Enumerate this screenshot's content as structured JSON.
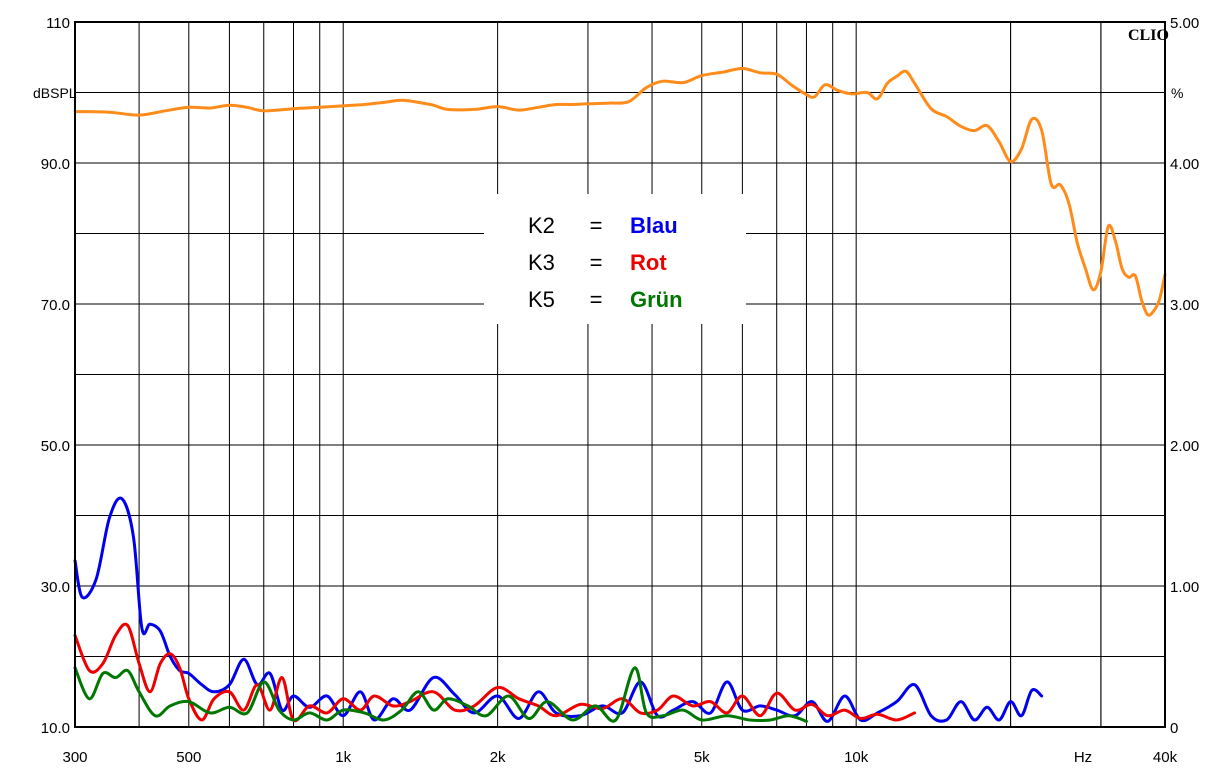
{
  "chart_data": {
    "type": "line",
    "brand": "CLIO",
    "xscale": "log",
    "xlim": [
      300,
      40000
    ],
    "xticks": [
      {
        "value": 300,
        "label": "300"
      },
      {
        "value": 500,
        "label": "500"
      },
      {
        "value": 1000,
        "label": "1k"
      },
      {
        "value": 2000,
        "label": "2k"
      },
      {
        "value": 5000,
        "label": "5k"
      },
      {
        "value": 10000,
        "label": "10k"
      },
      {
        "value": 40000,
        "label": "40k"
      }
    ],
    "xunit": "Hz",
    "grid": true,
    "y_left": {
      "unit": "dBSPL",
      "lim": [
        10,
        110
      ],
      "ticks": [
        {
          "value": 110,
          "label": "110"
        },
        {
          "value": 90,
          "label": "90.0"
        },
        {
          "value": 70,
          "label": "70.0"
        },
        {
          "value": 50,
          "label": "50.0"
        },
        {
          "value": 30,
          "label": "30.0"
        },
        {
          "value": 10,
          "label": "10.0"
        }
      ]
    },
    "y_right": {
      "unit": "%",
      "lim": [
        0,
        5
      ],
      "ticks": [
        {
          "value": 5,
          "label": "5.00"
        },
        {
          "value": 4,
          "label": "4.00"
        },
        {
          "value": 3,
          "label": "3.00"
        },
        {
          "value": 2,
          "label": "2.00"
        },
        {
          "value": 1,
          "label": "1.00"
        },
        {
          "value": 0,
          "label": "0"
        }
      ]
    },
    "legend": {
      "placement": "top-center",
      "entries": [
        {
          "key": "K2",
          "eq": "=",
          "color_name": "Blau",
          "color": "#0000ee"
        },
        {
          "key": "K3",
          "eq": "=",
          "color_name": "Rot",
          "color": "#ee0000"
        },
        {
          "key": "K5",
          "eq": "=",
          "color_name": "Grün",
          "color": "#007700"
        }
      ]
    },
    "series": [
      {
        "color": "#ff8c1a",
        "axis": "left",
        "x": [
          300,
          350,
          400,
          450,
          500,
          550,
          600,
          650,
          700,
          800,
          900,
          1000,
          1100,
          1200,
          1300,
          1400,
          1500,
          1600,
          1800,
          2000,
          2200,
          2400,
          2600,
          2800,
          3000,
          3300,
          3600,
          3900,
          4200,
          4600,
          5000,
          5500,
          6000,
          6500,
          7000,
          7500,
          8000,
          8300,
          8700,
          9200,
          9800,
          10500,
          11000,
          11500,
          12000,
          12500,
          13000,
          14000,
          15000,
          16000,
          17000,
          18000,
          19000,
          20000,
          21000,
          22000,
          23000,
          24000,
          25000,
          26000,
          27000,
          28000,
          29000,
          30000,
          31000,
          32000,
          33000,
          34000,
          35000,
          36000,
          37000,
          38000,
          39000,
          40000
        ],
        "values": [
          97.3,
          97.2,
          96.8,
          97.4,
          97.9,
          97.8,
          98.2,
          97.9,
          97.4,
          97.7,
          97.9,
          98.1,
          98.3,
          98.6,
          98.9,
          98.6,
          98.2,
          97.6,
          97.6,
          98.0,
          97.5,
          97.9,
          98.3,
          98.3,
          98.4,
          98.5,
          98.7,
          100.7,
          101.6,
          101.4,
          102.4,
          102.9,
          103.4,
          102.8,
          102.6,
          101.0,
          99.7,
          99.4,
          101.1,
          100.3,
          99.8,
          100.0,
          99.1,
          101.3,
          102.3,
          103.0,
          101.3,
          97.7,
          96.6,
          95.2,
          94.6,
          95.3,
          93.0,
          90.2,
          92.0,
          96.2,
          94.6,
          87.0,
          86.9,
          84.2,
          78.6,
          75.0,
          72.0,
          74.6,
          81.0,
          79.0,
          75.0,
          73.8,
          74.0,
          70.6,
          68.5,
          69.0,
          70.6,
          74.2
        ]
      },
      {
        "name": "K2",
        "color": "#0000ee",
        "axis": "right",
        "x": [
          300,
          310,
          330,
          350,
          370,
          390,
          405,
          420,
          440,
          460,
          480,
          500,
          530,
          560,
          600,
          640,
          680,
          720,
          760,
          800,
          860,
          930,
          1000,
          1080,
          1150,
          1250,
          1350,
          1500,
          1650,
          1800,
          2000,
          2200,
          2400,
          2600,
          2900,
          3200,
          3500,
          3800,
          4100,
          4400,
          4800,
          5200,
          5600,
          6000,
          6500,
          7000,
          7600,
          8200,
          8800,
          9500,
          10200,
          11000,
          12000,
          13000,
          14000,
          15000,
          16000,
          17000,
          18000,
          19000,
          20000,
          21000,
          22000,
          23000
        ],
        "values": [
          1.18,
          0.92,
          1.05,
          1.48,
          1.62,
          1.35,
          0.7,
          0.73,
          0.68,
          0.5,
          0.4,
          0.38,
          0.3,
          0.25,
          0.3,
          0.48,
          0.3,
          0.38,
          0.12,
          0.22,
          0.14,
          0.22,
          0.08,
          0.25,
          0.05,
          0.2,
          0.12,
          0.35,
          0.23,
          0.1,
          0.22,
          0.06,
          0.25,
          0.1,
          0.08,
          0.15,
          0.1,
          0.32,
          0.08,
          0.12,
          0.18,
          0.1,
          0.32,
          0.12,
          0.15,
          0.12,
          0.08,
          0.18,
          0.04,
          0.22,
          0.05,
          0.1,
          0.18,
          0.3,
          0.08,
          0.05,
          0.18,
          0.05,
          0.14,
          0.05,
          0.18,
          0.08,
          0.26,
          0.22
        ]
      },
      {
        "name": "K3",
        "color": "#ee0000",
        "axis": "right",
        "x": [
          300,
          320,
          340,
          360,
          380,
          400,
          420,
          440,
          460,
          480,
          500,
          530,
          560,
          600,
          640,
          680,
          720,
          760,
          800,
          860,
          930,
          1000,
          1080,
          1150,
          1250,
          1350,
          1500,
          1650,
          1800,
          2000,
          2200,
          2400,
          2600,
          2900,
          3200,
          3500,
          3800,
          4100,
          4400,
          4800,
          5200,
          5600,
          6000,
          6500,
          7000,
          7600,
          8200,
          8800,
          9500,
          10200,
          11000,
          12000,
          13000
        ],
        "values": [
          0.65,
          0.4,
          0.45,
          0.65,
          0.72,
          0.45,
          0.25,
          0.45,
          0.52,
          0.42,
          0.2,
          0.05,
          0.2,
          0.25,
          0.12,
          0.3,
          0.12,
          0.35,
          0.05,
          0.15,
          0.1,
          0.2,
          0.12,
          0.22,
          0.15,
          0.18,
          0.25,
          0.12,
          0.15,
          0.28,
          0.2,
          0.15,
          0.08,
          0.16,
          0.13,
          0.2,
          0.1,
          0.12,
          0.22,
          0.15,
          0.18,
          0.1,
          0.22,
          0.08,
          0.24,
          0.12,
          0.16,
          0.08,
          0.12,
          0.06,
          0.09,
          0.05,
          0.1
        ]
      },
      {
        "name": "K5",
        "color": "#007700",
        "axis": "right",
        "x": [
          300,
          320,
          340,
          360,
          380,
          400,
          430,
          460,
          500,
          550,
          600,
          650,
          700,
          750,
          800,
          860,
          930,
          1000,
          1100,
          1200,
          1300,
          1400,
          1500,
          1600,
          1750,
          1900,
          2100,
          2300,
          2500,
          2800,
          3100,
          3400,
          3700,
          3900,
          4200,
          4600,
          5000,
          5600,
          6200,
          6800,
          7400,
          8000
        ],
        "values": [
          0.42,
          0.2,
          0.38,
          0.35,
          0.4,
          0.25,
          0.08,
          0.15,
          0.18,
          0.1,
          0.14,
          0.1,
          0.32,
          0.12,
          0.05,
          0.1,
          0.05,
          0.12,
          0.1,
          0.05,
          0.12,
          0.25,
          0.12,
          0.2,
          0.15,
          0.08,
          0.22,
          0.06,
          0.18,
          0.05,
          0.15,
          0.05,
          0.42,
          0.1,
          0.08,
          0.12,
          0.05,
          0.08,
          0.05,
          0.05,
          0.08,
          0.04
        ]
      }
    ]
  }
}
